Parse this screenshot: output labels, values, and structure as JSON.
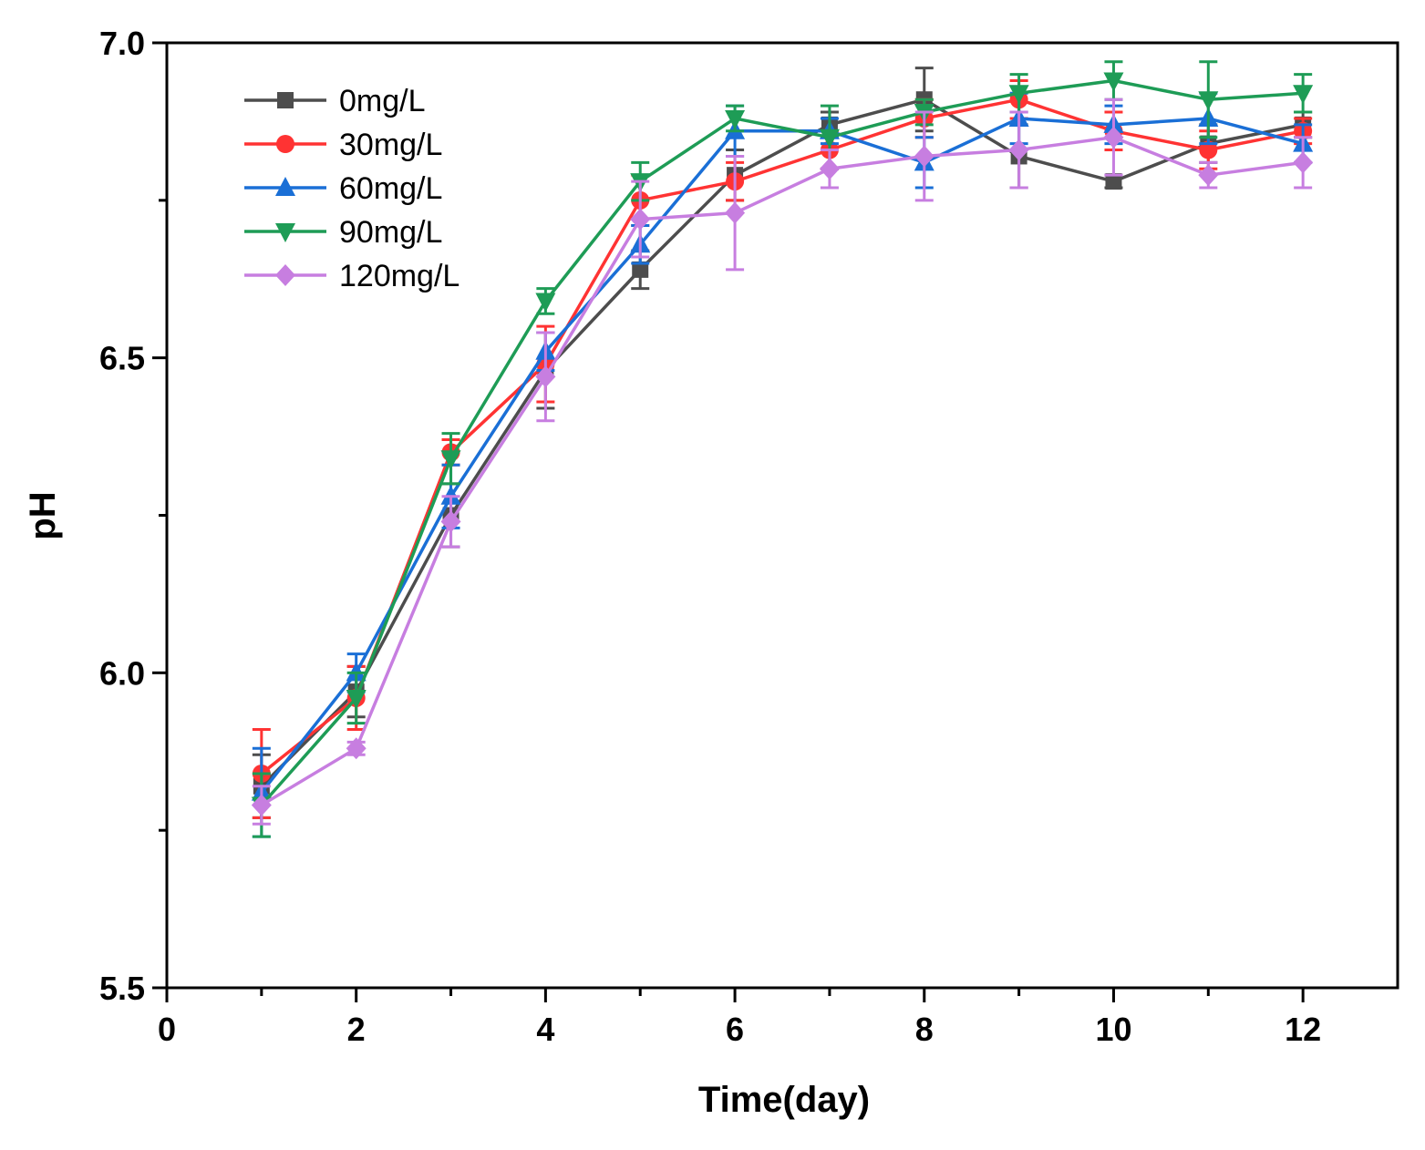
{
  "chart_data": {
    "type": "line",
    "title": "",
    "xlabel": "Time(day)",
    "ylabel": "pH",
    "xlim": [
      0,
      13
    ],
    "ylim": [
      5.5,
      7.0
    ],
    "xticks": [
      0,
      2,
      4,
      6,
      8,
      10,
      12
    ],
    "xtick_labels": [
      "0",
      "2",
      "4",
      "6",
      "8",
      "10",
      "12"
    ],
    "xminor_ticks": [
      1,
      3,
      5,
      7,
      9,
      11
    ],
    "yticks": [
      5.5,
      6.0,
      6.5,
      7.0
    ],
    "ytick_labels": [
      "5.5",
      "6.0",
      "6.5",
      "7.0"
    ],
    "yminor_ticks": [
      5.75,
      6.25,
      6.75
    ],
    "grid": false,
    "legend_position": "top-left",
    "x": [
      1,
      2,
      3,
      4,
      5,
      6,
      7,
      8,
      9,
      10,
      11,
      12
    ],
    "series": [
      {
        "name": "0mg/L",
        "color": "#4d4d4d",
        "marker": "square",
        "values": [
          5.82,
          5.97,
          6.25,
          6.48,
          6.64,
          6.79,
          6.87,
          6.91,
          6.82,
          6.78,
          6.84,
          6.87
        ],
        "errors": [
          0.05,
          0.04,
          0.05,
          0.06,
          0.03,
          0.04,
          0.02,
          0.05,
          0.05,
          0.01,
          0.03,
          0.02
        ]
      },
      {
        "name": "30mg/L",
        "color": "#ff3333",
        "marker": "circle",
        "values": [
          5.84,
          5.96,
          6.35,
          6.49,
          6.75,
          6.78,
          6.83,
          6.88,
          6.91,
          6.86,
          6.83,
          6.86
        ],
        "errors": [
          0.07,
          0.05,
          0.02,
          0.06,
          0.04,
          0.03,
          0.03,
          0.03,
          0.03,
          0.03,
          0.03,
          0.02
        ]
      },
      {
        "name": "60mg/L",
        "color": "#1a6fd6",
        "marker": "triangle-up",
        "values": [
          5.81,
          6.0,
          6.28,
          6.51,
          6.68,
          6.86,
          6.86,
          6.81,
          6.88,
          6.87,
          6.88,
          6.84
        ],
        "errors": [
          0.07,
          0.03,
          0.05,
          0.03,
          0.03,
          0.04,
          0.02,
          0.04,
          0.04,
          0.03,
          0.04,
          0.03
        ]
      },
      {
        "name": "90mg/L",
        "color": "#1e9c56",
        "marker": "triangle-down",
        "values": [
          5.79,
          5.96,
          6.34,
          6.59,
          6.78,
          6.88,
          6.85,
          6.89,
          6.92,
          6.94,
          6.91,
          6.92
        ],
        "errors": [
          0.05,
          0.04,
          0.04,
          0.02,
          0.03,
          0.02,
          0.05,
          0.02,
          0.03,
          0.03,
          0.06,
          0.03
        ]
      },
      {
        "name": "120mg/L",
        "color": "#c77ee0",
        "marker": "diamond",
        "values": [
          5.79,
          5.88,
          6.24,
          6.47,
          6.72,
          6.73,
          6.8,
          6.82,
          6.83,
          6.85,
          6.79,
          6.81
        ],
        "errors": [
          0.03,
          0.01,
          0.04,
          0.07,
          0.06,
          0.09,
          0.03,
          0.07,
          0.06,
          0.06,
          0.02,
          0.04
        ]
      }
    ]
  }
}
